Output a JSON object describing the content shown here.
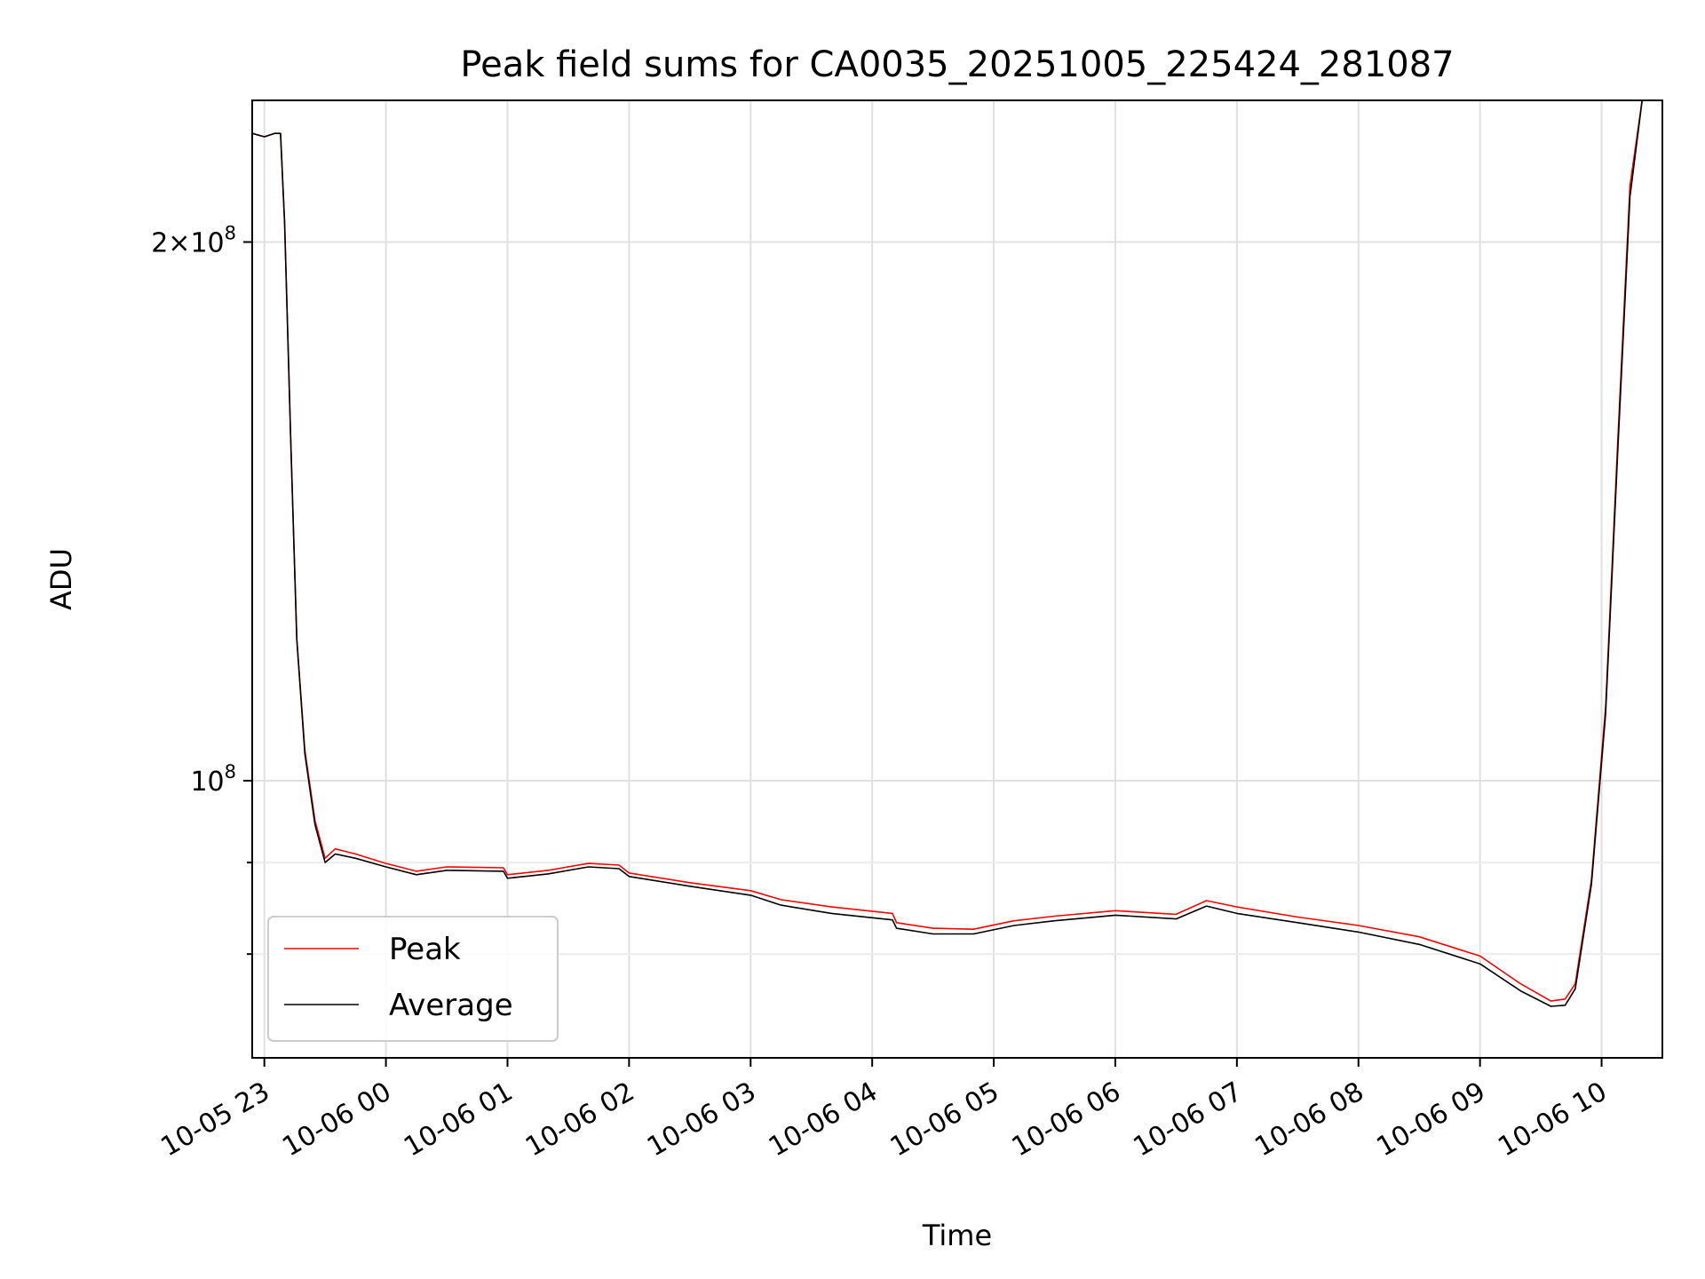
{
  "chart_data": {
    "type": "line",
    "title": "Peak field sums for CA0035_20251005_225424_281087",
    "xlabel": "Time",
    "ylabel": "ADU",
    "y_scale": "log",
    "ylim": [
      70000000,
      240000000
    ],
    "xlim": [
      "2025-10-05 22:54",
      "2025-10-06 10:30"
    ],
    "grid": true,
    "legend_position": "lower-left",
    "x_ticks": [
      {
        "t": "2025-10-05 23:00",
        "label": "10-05 23"
      },
      {
        "t": "2025-10-06 00:00",
        "label": "10-06 00"
      },
      {
        "t": "2025-10-06 01:00",
        "label": "10-06 01"
      },
      {
        "t": "2025-10-06 02:00",
        "label": "10-06 02"
      },
      {
        "t": "2025-10-06 03:00",
        "label": "10-06 03"
      },
      {
        "t": "2025-10-06 04:00",
        "label": "10-06 04"
      },
      {
        "t": "2025-10-06 05:00",
        "label": "10-06 05"
      },
      {
        "t": "2025-10-06 06:00",
        "label": "10-06 06"
      },
      {
        "t": "2025-10-06 07:00",
        "label": "10-06 07"
      },
      {
        "t": "2025-10-06 08:00",
        "label": "10-06 08"
      },
      {
        "t": "2025-10-06 09:00",
        "label": "10-06 09"
      },
      {
        "t": "2025-10-06 10:00",
        "label": "10-06 10"
      }
    ],
    "y_ticks_major": [
      {
        "value": 100000000,
        "base": "10",
        "exp": "8",
        "coef": ""
      },
      {
        "value": 200000000,
        "base": "10",
        "exp": "8",
        "coef": "2"
      }
    ],
    "y_ticks_minor": [
      80000000,
      90000000
    ],
    "series": [
      {
        "name": "Peak",
        "color": "#ff0000",
        "points": [
          [
            "2025-10-05 22:54",
            230000000
          ],
          [
            "2025-10-05 23:00",
            229000000
          ],
          [
            "2025-10-05 23:05",
            230000000
          ],
          [
            "2025-10-05 23:08",
            230000000
          ],
          [
            "2025-10-05 23:10",
            205000000
          ],
          [
            "2025-10-05 23:13",
            155000000
          ],
          [
            "2025-10-05 23:16",
            120000000
          ],
          [
            "2025-10-05 23:20",
            104000000
          ],
          [
            "2025-10-05 23:25",
            95000000
          ],
          [
            "2025-10-05 23:30",
            90500000
          ],
          [
            "2025-10-05 23:35",
            91600000
          ],
          [
            "2025-10-05 23:45",
            91000000
          ],
          [
            "2025-10-06 00:00",
            89900000
          ],
          [
            "2025-10-06 00:15",
            89000000
          ],
          [
            "2025-10-06 00:30",
            89500000
          ],
          [
            "2025-10-06 00:58",
            89400000
          ],
          [
            "2025-10-06 01:00",
            88600000
          ],
          [
            "2025-10-06 01:20",
            89100000
          ],
          [
            "2025-10-06 01:40",
            89900000
          ],
          [
            "2025-10-06 01:55",
            89700000
          ],
          [
            "2025-10-06 02:00",
            88800000
          ],
          [
            "2025-10-06 02:30",
            87700000
          ],
          [
            "2025-10-06 03:00",
            86800000
          ],
          [
            "2025-10-06 03:15",
            85800000
          ],
          [
            "2025-10-06 03:40",
            85000000
          ],
          [
            "2025-10-06 04:10",
            84300000
          ],
          [
            "2025-10-06 04:12",
            83300000
          ],
          [
            "2025-10-06 04:30",
            82700000
          ],
          [
            "2025-10-06 04:50",
            82600000
          ],
          [
            "2025-10-06 05:10",
            83500000
          ],
          [
            "2025-10-06 05:30",
            84000000
          ],
          [
            "2025-10-06 06:00",
            84600000
          ],
          [
            "2025-10-06 06:30",
            84200000
          ],
          [
            "2025-10-06 06:45",
            85700000
          ],
          [
            "2025-10-06 07:00",
            85000000
          ],
          [
            "2025-10-06 07:30",
            83900000
          ],
          [
            "2025-10-06 08:00",
            83000000
          ],
          [
            "2025-10-06 08:30",
            81800000
          ],
          [
            "2025-10-06 09:00",
            79800000
          ],
          [
            "2025-10-06 09:20",
            77000000
          ],
          [
            "2025-10-06 09:35",
            75300000
          ],
          [
            "2025-10-06 09:42",
            75500000
          ],
          [
            "2025-10-06 09:47",
            77000000
          ],
          [
            "2025-10-06 09:55",
            88000000
          ],
          [
            "2025-10-06 10:02",
            110000000
          ],
          [
            "2025-10-06 10:08",
            155000000
          ],
          [
            "2025-10-06 10:14",
            215000000
          ],
          [
            "2025-10-06 10:20",
            240000000
          ],
          [
            "2025-10-06 10:30",
            240000000
          ]
        ]
      },
      {
        "name": "Average",
        "color": "#000000",
        "points": [
          [
            "2025-10-05 22:54",
            230000000
          ],
          [
            "2025-10-05 23:00",
            229000000
          ],
          [
            "2025-10-05 23:05",
            230000000
          ],
          [
            "2025-10-05 23:08",
            230000000
          ],
          [
            "2025-10-05 23:10",
            205000000
          ],
          [
            "2025-10-05 23:13",
            155000000
          ],
          [
            "2025-10-05 23:16",
            120000000
          ],
          [
            "2025-10-05 23:20",
            103500000
          ],
          [
            "2025-10-05 23:25",
            94500000
          ],
          [
            "2025-10-05 23:30",
            90000000
          ],
          [
            "2025-10-05 23:35",
            91000000
          ],
          [
            "2025-10-05 23:45",
            90500000
          ],
          [
            "2025-10-06 00:00",
            89500000
          ],
          [
            "2025-10-06 00:15",
            88600000
          ],
          [
            "2025-10-06 00:30",
            89100000
          ],
          [
            "2025-10-06 00:58",
            89000000
          ],
          [
            "2025-10-06 01:00",
            88200000
          ],
          [
            "2025-10-06 01:20",
            88700000
          ],
          [
            "2025-10-06 01:40",
            89500000
          ],
          [
            "2025-10-06 01:55",
            89300000
          ],
          [
            "2025-10-06 02:00",
            88400000
          ],
          [
            "2025-10-06 02:30",
            87300000
          ],
          [
            "2025-10-06 03:00",
            86300000
          ],
          [
            "2025-10-06 03:15",
            85200000
          ],
          [
            "2025-10-06 03:40",
            84300000
          ],
          [
            "2025-10-06 04:10",
            83600000
          ],
          [
            "2025-10-06 04:12",
            82700000
          ],
          [
            "2025-10-06 04:30",
            82100000
          ],
          [
            "2025-10-06 04:50",
            82100000
          ],
          [
            "2025-10-06 05:10",
            83000000
          ],
          [
            "2025-10-06 05:30",
            83500000
          ],
          [
            "2025-10-06 06:00",
            84100000
          ],
          [
            "2025-10-06 06:30",
            83700000
          ],
          [
            "2025-10-06 06:45",
            85100000
          ],
          [
            "2025-10-06 07:00",
            84300000
          ],
          [
            "2025-10-06 07:30",
            83300000
          ],
          [
            "2025-10-06 08:00",
            82300000
          ],
          [
            "2025-10-06 08:30",
            81000000
          ],
          [
            "2025-10-06 09:00",
            79000000
          ],
          [
            "2025-10-06 09:20",
            76300000
          ],
          [
            "2025-10-06 09:35",
            74800000
          ],
          [
            "2025-10-06 09:42",
            74900000
          ],
          [
            "2025-10-06 09:47",
            76500000
          ],
          [
            "2025-10-06 09:55",
            87500000
          ],
          [
            "2025-10-06 10:02",
            109000000
          ],
          [
            "2025-10-06 10:08",
            153000000
          ],
          [
            "2025-10-06 10:14",
            212000000
          ],
          [
            "2025-10-06 10:20",
            240000000
          ],
          [
            "2025-10-06 10:30",
            240000000
          ]
        ]
      }
    ]
  }
}
